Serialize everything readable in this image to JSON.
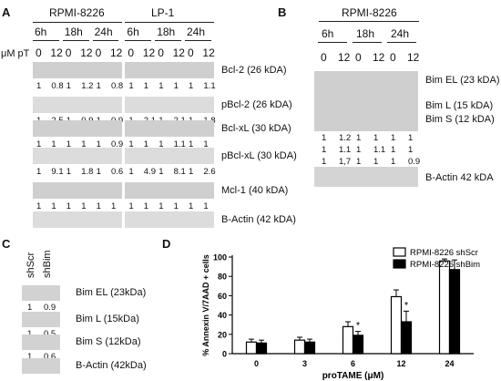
{
  "panel_A": {
    "label": "A",
    "groups": [
      "RPMI-8226",
      "LP-1"
    ],
    "times": [
      "6h",
      "18h",
      "24h",
      "6h",
      "18h",
      "24h"
    ],
    "conc_prefix": "μM pT",
    "conc": [
      "0",
      "12",
      "0",
      "12",
      "0",
      "12",
      "0",
      "12",
      "0",
      "12",
      "0",
      "12"
    ],
    "rows": [
      {
        "label": "Bcl-2 (26 kDA)",
        "values": [
          "1",
          "0.8",
          "1",
          "1.2",
          "1",
          "0.8",
          "1",
          "1",
          "1",
          "1",
          "1",
          "1.1"
        ]
      },
      {
        "label": "pBcl-2 (26 kDA)",
        "values": [
          "1",
          "2.5",
          "1",
          "0.9",
          "1",
          "0.9",
          "1",
          "2.1",
          "1",
          "2.1",
          "1",
          "1.8"
        ]
      },
      {
        "label": "Bcl-xL (30 kDA)",
        "values": [
          "1",
          "1",
          "1",
          "1",
          "1",
          "0.9",
          "1",
          "1",
          "1",
          "1.1",
          "1",
          "1"
        ]
      },
      {
        "label": "pBcl-xL (30 kDA)",
        "values": [
          "1",
          "9.1",
          "1",
          "1.8",
          "1",
          "0.6",
          "1",
          "4.9",
          "1",
          "8.1",
          "1",
          "2.6"
        ]
      },
      {
        "label": "Mcl-1 (40 kDA)",
        "values": [
          "1",
          "1",
          "1",
          "1",
          "1",
          "1",
          "1",
          "1",
          "1",
          "1",
          "1",
          "1"
        ]
      },
      {
        "label": "B-Actin (42 kDA)",
        "values": []
      }
    ]
  },
  "panel_B": {
    "label": "B",
    "group": "RPMI-8226",
    "times": [
      "6h",
      "18h",
      "24h"
    ],
    "conc": [
      "0",
      "12",
      "0",
      "12",
      "0",
      "12"
    ],
    "bands": [
      "Bim EL (23 kDA)",
      "Bim L (15 kDA)",
      "Bim S (12 kDA)"
    ],
    "values": [
      [
        "1",
        "1.2",
        "1",
        "1",
        "1",
        "1"
      ],
      [
        "1",
        "1.1",
        "1",
        "1.1",
        "1",
        "1"
      ],
      [
        "1",
        "1,7",
        "1",
        "1",
        "1",
        "0.9"
      ]
    ],
    "actin": "B-Actin 42 kDA"
  },
  "panel_C": {
    "label": "C",
    "lanes": [
      "shScr",
      "shBim"
    ],
    "rows": [
      {
        "label": "Bim EL (23kDa)",
        "values": [
          "1",
          "0.9"
        ]
      },
      {
        "label": "Bim L (15kDa)",
        "values": [
          "1",
          "0.5"
        ]
      },
      {
        "label": "Bim S (12kDa)",
        "values": [
          "1",
          "0.6"
        ]
      },
      {
        "label": "B-Actin (42kDa)",
        "values": []
      }
    ]
  },
  "panel_D": {
    "label": "D"
  },
  "chart_data": {
    "type": "bar",
    "categories": [
      "0",
      "3",
      "6",
      "12",
      "24"
    ],
    "series": [
      {
        "name": "RPMI-8226 shScr",
        "values": [
          12,
          14,
          28,
          59,
          96
        ],
        "errors": [
          3,
          3,
          5,
          7,
          2
        ],
        "color": "#ffffff"
      },
      {
        "name": "RPMI-8226 shBim",
        "values": [
          11,
          12,
          19,
          33,
          87
        ],
        "errors": [
          3,
          3,
          4,
          11,
          10
        ],
        "color": "#000000"
      }
    ],
    "significance": [
      "",
      "",
      "*",
      "*",
      ""
    ],
    "xlabel": "proTAME (μM)",
    "ylabel": "% Annexin V/7AAD + cells",
    "yticks": [
      0,
      20,
      40,
      60,
      80,
      100
    ],
    "ylim": [
      0,
      100
    ],
    "legend": "top-right"
  }
}
